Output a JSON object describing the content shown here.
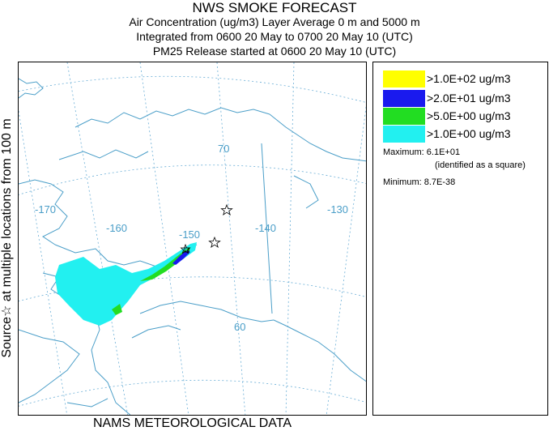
{
  "header": {
    "title": "NWS SMOKE FORECAST",
    "line1": "Air Concentration (ug/m3) Layer Average    0 m and  5000 m",
    "line2": "Integrated from 0600 20 May to 0700 20 May 10 (UTC)",
    "line3": "PM25 Release started at 0600 20 May 10 (UTC)"
  },
  "side_label": "Source☆  at multiple locations   from  100 m",
  "bottom_label": "NAMS METEOROLOGICAL DATA",
  "map": {
    "longitude_labels": [
      "-170",
      "-160",
      "-150",
      "-140",
      "-130"
    ],
    "latitude_labels": [
      "70",
      "60"
    ],
    "colors": {
      "land_outline": "#4a9ec8",
      "graticule": "#6aaed6",
      "level_1": "#ffff00",
      "level_2": "#2222dd",
      "level_3": "#22dd22",
      "level_4": "#22eeee"
    }
  },
  "legend": {
    "entries": [
      {
        "label": ">1.0E+02 ug/m3",
        "color": "#ffff00"
      },
      {
        "label": ">2.0E+01 ug/m3",
        "color": "#1a1aee"
      },
      {
        "label": ">5.0E+00 ug/m3",
        "color": "#22dd22"
      },
      {
        "label": ">1.0E+00 ug/m3",
        "color": "#22f0f0"
      }
    ],
    "maximum_label": "Maximum: 6.1E+01",
    "maximum_note": "(identified as a square)",
    "minimum_label": "Minimum: 8.7E-38"
  }
}
